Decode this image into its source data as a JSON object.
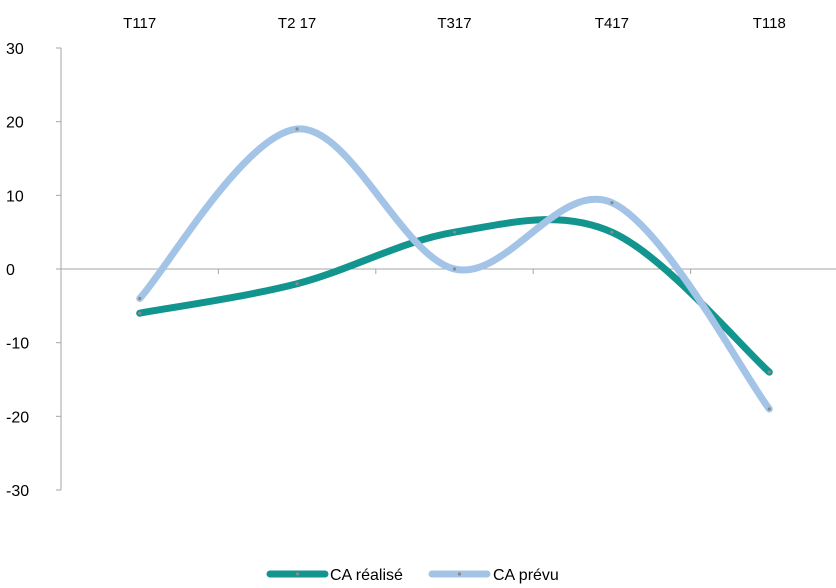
{
  "chart_data": {
    "type": "line",
    "title": "",
    "xlabel": "",
    "ylabel": "",
    "categories": [
      "T117",
      "T2 17",
      "T317",
      "T417",
      "T118"
    ],
    "ylim": [
      -30,
      30
    ],
    "yticks": [
      "30",
      "20",
      "10",
      "0",
      "-10",
      "-20",
      "-30"
    ],
    "grid": false,
    "smooth": true,
    "legend_position": "bottom",
    "series": [
      {
        "name": "CA réalisé",
        "values": [
          -6,
          -2,
          5,
          5,
          -14
        ],
        "color": "#12958f"
      },
      {
        "name": "CA prévu",
        "values": [
          -4,
          19,
          0,
          9,
          -19
        ],
        "color": "#a3c4e6"
      }
    ]
  }
}
